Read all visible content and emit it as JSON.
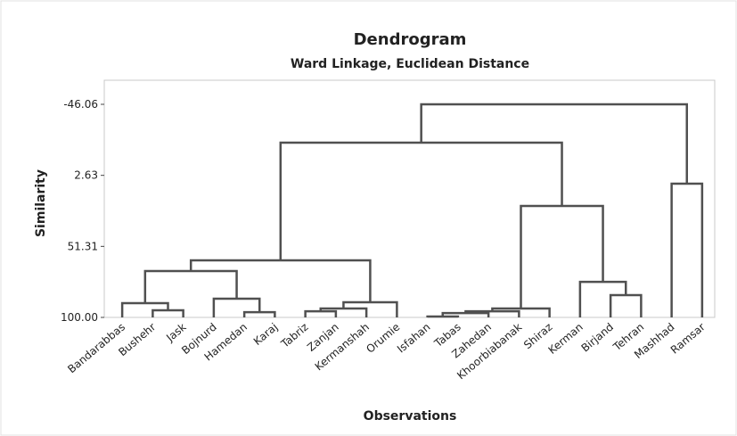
{
  "chart_data": {
    "type": "dendrogram",
    "title": "Dendrogram",
    "subtitle": "Ward Linkage, Euclidean Distance",
    "y_label": "Similarity",
    "x_label": "Observations",
    "color": "#505050",
    "ylim": [
      -46.06,
      100
    ],
    "yticks": [
      -46.06,
      2.63,
      51.31,
      {
        "value": 100,
        "label": "100.00"
      }
    ],
    "leaves": [
      "Bandarabbas",
      "Bushehr",
      "Jask",
      "Bojnurd",
      "Hamedan",
      "Karaj",
      "Tabriz",
      "Zanjan",
      "Kermanshah",
      "Orumie",
      "Isfahan",
      "Tabas",
      "Zahedan",
      "Khoorbiabanak",
      "Shiraz",
      "Kerman",
      "Birjand",
      "Tehran",
      "Mashhad",
      "Ramsar"
    ],
    "merges": [
      {
        "left": 1,
        "right": 2,
        "value": 95.1
      },
      {
        "left": 0,
        "right": 20,
        "value": 90.2
      },
      {
        "left": 4,
        "right": 5,
        "value": 96.4
      },
      {
        "left": 3,
        "right": 22,
        "value": 87.2
      },
      {
        "left": 21,
        "right": 23,
        "value": 68.2
      },
      {
        "left": 6,
        "right": 7,
        "value": 95.8
      },
      {
        "left": 25,
        "right": 8,
        "value": 93.9
      },
      {
        "left": 26,
        "right": 9,
        "value": 89.6
      },
      {
        "left": 24,
        "right": 27,
        "value": 60.9
      },
      {
        "left": 10,
        "right": 11,
        "value": 99.4
      },
      {
        "left": 29,
        "right": 12,
        "value": 97.0
      },
      {
        "left": 30,
        "right": 13,
        "value": 95.8
      },
      {
        "left": 31,
        "right": 14,
        "value": 93.9
      },
      {
        "left": 16,
        "right": 17,
        "value": 84.7
      },
      {
        "left": 15,
        "right": 33,
        "value": 75.6
      },
      {
        "left": 32,
        "right": 34,
        "value": 23.6
      },
      {
        "left": 28,
        "right": 35,
        "value": -19.8
      },
      {
        "left": 18,
        "right": 19,
        "value": 8.3
      },
      {
        "left": 36,
        "right": 37,
        "value": -46.06
      }
    ]
  }
}
